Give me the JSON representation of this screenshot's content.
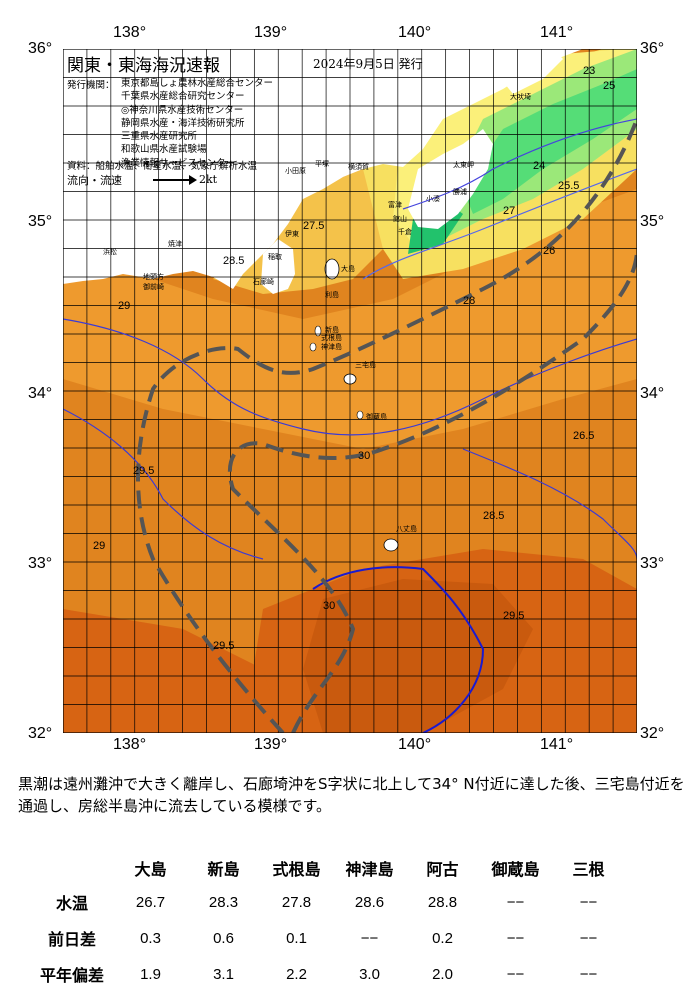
{
  "map": {
    "title": "関東・東海海況速報",
    "issue_date": "2024年9月5日 発行",
    "issuer_label": "発行機関：",
    "issuers": [
      "東京都島しょ農林水産総合センター",
      "千葉県水産総合研究センター",
      "◎神奈川県水産技術センター",
      "静岡県水産・海洋技術研究所",
      "三重県水産研究所",
      "和歌山県水産試験場",
      "漁業情報サービスセンター"
    ],
    "sources": "資料：船舶水温、衛星水温、気象庁解析水温",
    "flow_legend": "流向・流速",
    "flow_unit": "2kt",
    "lon_labels": [
      "138°",
      "139°",
      "140°",
      "141°"
    ],
    "lat_labels": [
      "36°",
      "35°",
      "34°",
      "33°",
      "32°"
    ],
    "contour_labels": [
      "29",
      "28.5",
      "29.5",
      "30",
      "27.5",
      "27",
      "26",
      "25.5",
      "28",
      "26.5",
      "24",
      "25",
      "23"
    ],
    "place_names": [
      "大吠埼",
      "太東岬",
      "勝浦",
      "館山",
      "千倉",
      "小湊",
      "横須賀",
      "平塚",
      "小田原",
      "伊東",
      "石廊崎",
      "焼津",
      "御前崎",
      "大島",
      "新島",
      "神津島",
      "三宅島",
      "御蔵島",
      "八丈島",
      "利島",
      "式根島",
      "富津",
      "稲取",
      "地頭方",
      "浜松"
    ],
    "colors": {
      "sea_warm": "#e0841f",
      "sea_mid": "#ee9a2e",
      "sea_hot": "#d76413",
      "sea_hotter": "#c95a0e",
      "cool": "#f4c24a",
      "cooler": "#f7e060",
      "yellow": "#fbf07a",
      "green_light": "#9be879",
      "green": "#55dd77",
      "green_dark": "#22c26c",
      "land": "#ffffff",
      "contour": "#3a3ad6",
      "current": "#555555",
      "grid": "#000000"
    }
  },
  "summary": "黒潮は遠州灘沖で大きく離岸し、石廊埼沖をS字状に北上して34° N付近に達した後、三宅島付近を通過し、房総半島沖に流去している模様です。",
  "stats": {
    "columns": [
      "大島",
      "新島",
      "式根島",
      "神津島",
      "阿古",
      "御蔵島",
      "三根"
    ],
    "rows": [
      {
        "label": "水温",
        "values": [
          "26.7",
          "28.3",
          "27.8",
          "28.6",
          "28.8",
          "−−",
          "−−"
        ]
      },
      {
        "label": "前日差",
        "values": [
          "0.3",
          "0.6",
          "0.1",
          "−−",
          "0.2",
          "−−",
          "−−"
        ]
      },
      {
        "label": "平年偏差",
        "values": [
          "1.9",
          "3.1",
          "2.2",
          "3.0",
          "2.0",
          "−−",
          "−−"
        ]
      }
    ]
  }
}
